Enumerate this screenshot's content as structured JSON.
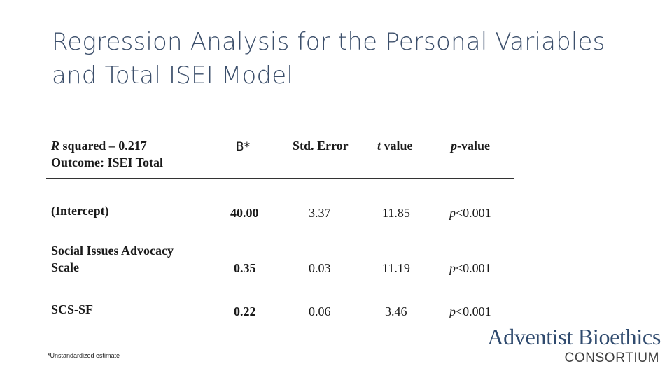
{
  "title": {
    "line1": "Regression Analysis for the Personal Variables",
    "line2": "and Total ISEI Model"
  },
  "table": {
    "header": {
      "model_line1_prefix": "R",
      "model_line1_rest": " squared – 0.217",
      "model_line2": "Outcome: ISEI Total",
      "b": "B*",
      "se": "Std. Error",
      "t_italic": "t",
      "t_rest": " value",
      "p_italic": "p",
      "p_rest": "-value"
    },
    "rows": [
      {
        "label_line1": "(Intercept)",
        "label_line2": "",
        "b": "40.00",
        "se": "3.37",
        "t": "11.85",
        "p_italic": "p",
        "p_rest": "<0.001"
      },
      {
        "label_line1": "Social Issues Advocacy",
        "label_line2": "Scale",
        "b": "0.35",
        "se": "0.03",
        "t": "11.19",
        "p_italic": "p",
        "p_rest": "<0.001"
      },
      {
        "label_line1": "SCS-SF",
        "label_line2": "",
        "b": "0.22",
        "se": "0.06",
        "t": "3.46",
        "p_italic": "p",
        "p_rest": "<0.001"
      }
    ]
  },
  "footnote": "*Unstandardized estimate",
  "logo": {
    "name": "Adventist Bioethics",
    "subtitle": "CONSORTIUM"
  }
}
